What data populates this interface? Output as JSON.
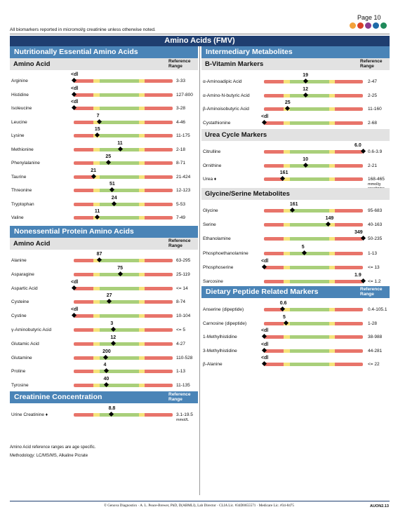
{
  "header": {
    "page": "Page 10",
    "note": "All biomarkers reported in micromol/g creatinine unless otherwise noted.",
    "banner": "Amino Acids (FMV)",
    "dot_colors": [
      "#f3a23b",
      "#d9402a",
      "#8b3a8f",
      "#1f6aa8",
      "#1f8a5a",
      "#3a7d3a"
    ]
  },
  "colors": {
    "header": "#1f3e70",
    "section": "#4a84b7",
    "subhead": "#e2e2e2",
    "red": "#e8746a",
    "yellow": "#f5e37a",
    "green": "#a9cf7a"
  },
  "left": {
    "essential": {
      "title": "Nutritionally Essential Amino Acids",
      "subtitle": "Amino Acid",
      "ref_header": "Reference Range",
      "rows": [
        {
          "name": "Arginine",
          "value": "<dl",
          "range": "3-33",
          "pos": 0.0
        },
        {
          "name": "Histidine",
          "value": "<dl",
          "range": "127-800",
          "pos": 0.0
        },
        {
          "name": "Isoleucine",
          "value": "<dl",
          "range": "3-28",
          "pos": 0.0
        },
        {
          "name": "Leucine",
          "value": "7",
          "range": "4-46",
          "pos": 0.26
        },
        {
          "name": "Lysine",
          "value": "15",
          "range": "11-175",
          "pos": 0.24
        },
        {
          "name": "Methionine",
          "value": "11",
          "range": "2-18",
          "pos": 0.47
        },
        {
          "name": "Phenylalanine",
          "value": "25",
          "range": "8-71",
          "pos": 0.35
        },
        {
          "name": "Taurine",
          "value": "21",
          "range": "21-424",
          "pos": 0.2
        },
        {
          "name": "Threonine",
          "value": "51",
          "range": "12-123",
          "pos": 0.39
        },
        {
          "name": "Tryptophan",
          "value": "24",
          "range": "5-53",
          "pos": 0.41
        },
        {
          "name": "Valine",
          "value": "11",
          "range": "7-49",
          "pos": 0.24
        }
      ]
    },
    "nonessential": {
      "title": "Nonessential Protein Amino Acids",
      "subtitle": "Amino Acid",
      "ref_header": "Reference Range",
      "rows": [
        {
          "name": "Alanine",
          "value": "87",
          "range": "63-295",
          "pos": 0.26
        },
        {
          "name": "Asparagine",
          "value": "75",
          "range": "25-119",
          "pos": 0.47
        },
        {
          "name": "Aspartic Acid",
          "value": "<dl",
          "range": "<= 14",
          "pos": 0.0
        },
        {
          "name": "Cysteine",
          "value": "27",
          "range": "8-74",
          "pos": 0.36
        },
        {
          "name": "Cystine",
          "value": "<dl",
          "range": "10-104",
          "pos": 0.0
        },
        {
          "name": "γ-Aminobutyric Acid",
          "value": "3",
          "range": "<= 5",
          "pos": 0.4
        },
        {
          "name": "Glutamic Acid",
          "value": "12",
          "range": "4-27",
          "pos": 0.4
        },
        {
          "name": "Glutamine",
          "value": "200",
          "range": "110-528",
          "pos": 0.32
        },
        {
          "name": "Proline",
          "value": "4",
          "range": "1-13",
          "pos": 0.33
        },
        {
          "name": "Tyrosine",
          "value": "40",
          "range": "11-135",
          "pos": 0.33
        }
      ]
    },
    "creatinine": {
      "title": "Creatinine Concentration",
      "ref_header": "Reference Range",
      "rows": [
        {
          "name": "Urine Creatinine ♦",
          "value": "8.8",
          "range": "3.1-19.5",
          "pos": 0.38,
          "unit": "mmol/L"
        }
      ]
    },
    "footnotes": [
      "Amino Acid reference ranges are age specific.",
      "Methodology: LC/MS/MS, Alkaline Picrate"
    ]
  },
  "right": {
    "intermediary": {
      "title": "Intermediary Metabolites",
      "bvitamin": {
        "subtitle": "B-Vitamin Markers",
        "ref_header": "Reference Range",
        "rows": [
          {
            "name": "α-Aminoadipic Acid",
            "value": "19",
            "range": "2-47",
            "pos": 0.42
          },
          {
            "name": "α-Amino-N-butyric Acid",
            "value": "12",
            "range": "2-25",
            "pos": 0.42
          },
          {
            "name": "β-Aminoisobutyric Acid",
            "value": "25",
            "range": "11-160",
            "pos": 0.24
          },
          {
            "name": "Cystathionine",
            "value": "<dl",
            "range": "2-68",
            "pos": 0.0
          }
        ]
      },
      "urea": {
        "subtitle": "Urea Cycle Markers",
        "rows": [
          {
            "name": "Citrulline",
            "value": "6.0",
            "range": "0.6-3.9",
            "pos": 1.0
          },
          {
            "name": "Ornithine",
            "value": "10",
            "range": "2-21",
            "pos": 0.42
          },
          {
            "name": "Urea ♦",
            "value": "161",
            "range": "168-465",
            "pos": 0.19,
            "unit": "mmol/g creatinine"
          }
        ]
      },
      "glycine": {
        "subtitle": "Glycine/Serine Metabolites",
        "rows": [
          {
            "name": "Glycine",
            "value": "161",
            "range": "95-683",
            "pos": 0.29
          },
          {
            "name": "Serine",
            "value": "149",
            "range": "40-163",
            "pos": 0.65
          },
          {
            "name": "Ethanolamine",
            "value": "349",
            "range": "50-235",
            "pos": 1.0
          },
          {
            "name": "Phosphoethanolamine",
            "value": "5",
            "range": "1-13",
            "pos": 0.41
          },
          {
            "name": "Phosphoserine",
            "value": "<dl",
            "range": "<= 13",
            "pos": 0.0
          },
          {
            "name": "Sarcosine",
            "value": "1.9",
            "range": "<= 1.2",
            "pos": 1.0
          }
        ]
      }
    },
    "dietary": {
      "title": "Dietary Peptide Related Markers",
      "ref_header": "Reference Range",
      "rows": [
        {
          "name": "Anserine (dipeptide)",
          "value": "0.6",
          "range": "0.4-105.1",
          "pos": 0.19
        },
        {
          "name": "Carnosine (dipeptide)",
          "value": "5",
          "range": "1-28",
          "pos": 0.22
        },
        {
          "name": "1-Methylhistidine",
          "value": "<dl",
          "range": "38-988",
          "pos": 0.0
        },
        {
          "name": "3-Methylhistidine",
          "value": "<dl",
          "range": "44-281",
          "pos": 0.0
        },
        {
          "name": "β-Alanine",
          "value": "<dl",
          "range": "<= 22",
          "pos": 0.0
        }
      ]
    }
  },
  "footer": {
    "text": "© Genova Diagnostics · A. L. Peace-Brewer, PhD, D(ABMLI), Lab Director · CLIA Lic. #34D0655571 · Medicare Lic. #34-8475",
    "code": "AUON2.13"
  }
}
